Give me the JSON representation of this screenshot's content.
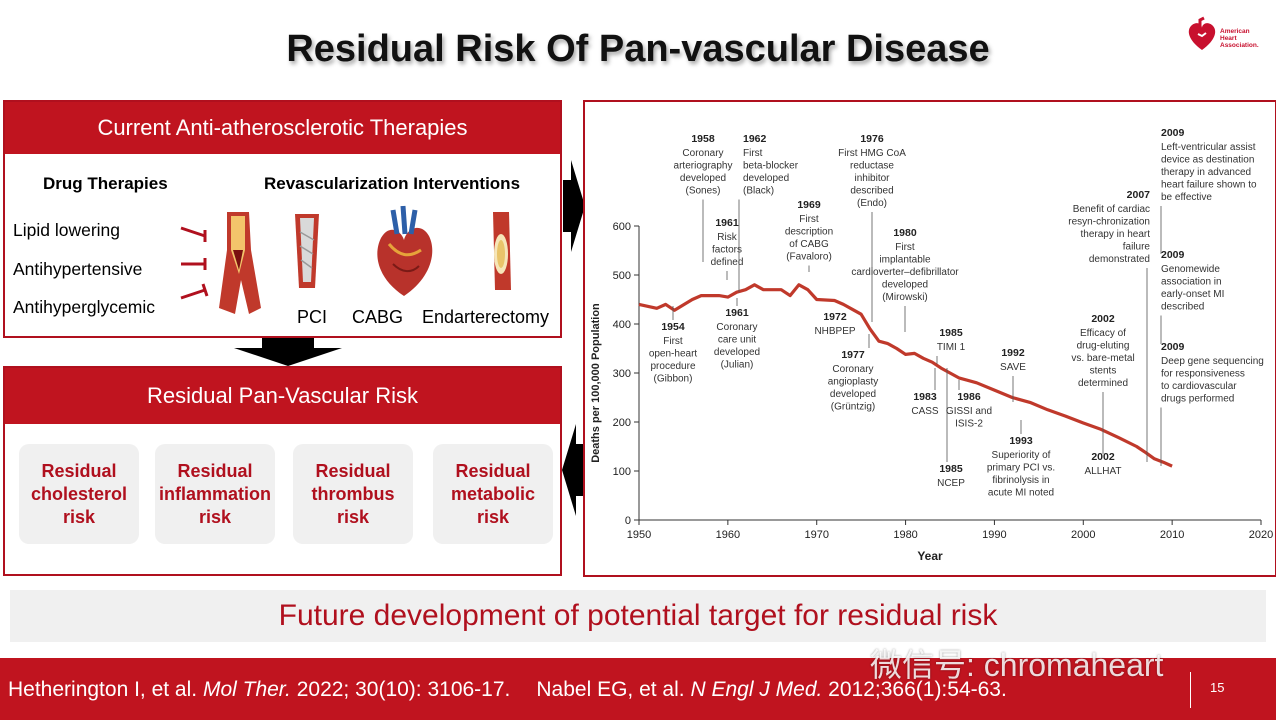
{
  "slide": {
    "title": "Residual Risk Of Pan-vascular Disease",
    "slide_number": "15",
    "aha_logo_text": [
      "American",
      "Heart",
      "Association."
    ]
  },
  "therapies": {
    "header": "Current Anti-atherosclerotic Therapies",
    "drug_header": "Drug Therapies",
    "revasc_header": "Revascularization Interventions",
    "drugs": [
      "Lipid lowering",
      "Antihypertensive",
      "Antihyperglycemic"
    ],
    "procedures": [
      "PCI",
      "CABG",
      "Endarterectomy"
    ]
  },
  "risk": {
    "header": "Residual Pan-Vascular Risk",
    "cards": [
      "Residual cholesterol risk",
      "Residual inflammation risk",
      "Residual thrombus risk",
      "Residual metabolic risk"
    ]
  },
  "future": "Future development of potential target for residual risk",
  "footer": {
    "cite1_authors": "Hetherington I, et al. ",
    "cite1_journal": "Mol Ther.",
    "cite1_rest": " 2022; 30(10): 3106-17.",
    "cite2_authors": "Nabel EG, et al. ",
    "cite2_journal": "N Engl J Med.",
    "cite2_rest": " 2012;366(1):54-63."
  },
  "watermark": "微信号: chromaheart",
  "colors": {
    "brand_red": "#c0141f",
    "line_red": "#c0392b",
    "card_bg": "#f0f0f0"
  },
  "chart_data": {
    "type": "line",
    "xlabel": "Year",
    "ylabel": "Deaths per 100,000 Population",
    "xlim": [
      1950,
      2020
    ],
    "ylim": [
      0,
      600
    ],
    "xticks": [
      1950,
      1960,
      1970,
      1980,
      1990,
      2000,
      2010,
      2020
    ],
    "yticks": [
      0,
      100,
      200,
      300,
      400,
      500,
      600
    ],
    "grid": false,
    "series": [
      {
        "x": [
          1950,
          1952,
          1953,
          1954,
          1956,
          1957,
          1958,
          1959,
          1960,
          1961,
          1962,
          1963,
          1964,
          1966,
          1967,
          1968,
          1969,
          1970,
          1972,
          1973,
          1974,
          1975,
          1976,
          1977,
          1978,
          1979,
          1980,
          1981,
          1982,
          1983,
          1984,
          1985,
          1986,
          1988,
          1990,
          1992,
          1994,
          1996,
          1998,
          2000,
          2002,
          2004,
          2006,
          2007,
          2008,
          2009,
          2010
        ],
        "y": [
          440,
          432,
          440,
          428,
          450,
          458,
          458,
          458,
          455,
          465,
          470,
          480,
          470,
          470,
          458,
          480,
          470,
          450,
          448,
          440,
          430,
          420,
          390,
          365,
          360,
          350,
          338,
          340,
          330,
          322,
          310,
          300,
          290,
          280,
          265,
          250,
          240,
          225,
          212,
          198,
          185,
          168,
          150,
          138,
          125,
          118,
          110
        ]
      }
    ],
    "annotations": [
      {
        "year": "1958",
        "text": "Coronary arteriography developed (Sones)"
      },
      {
        "year": "1961",
        "text": "Risk factors defined"
      },
      {
        "year": "1962",
        "text": "First beta-blocker developed (Black)"
      },
      {
        "year": "1969",
        "text": "First description of CABG (Favaloro)"
      },
      {
        "year": "1976",
        "text": "First HMG CoA reductase inhibitor described (Endo)"
      },
      {
        "year": "1980",
        "text": "First implantable cardioverter–defibrillator developed (Mirowski)"
      },
      {
        "year": "1954",
        "text": "First open-heart procedure (Gibbon)"
      },
      {
        "year": "1961",
        "text": "Coronary care unit developed (Julian)"
      },
      {
        "year": "1972",
        "text": "NHBPEP"
      },
      {
        "year": "1977",
        "text": "Coronary angioplasty developed (Grüntzig)"
      },
      {
        "year": "1983",
        "text": "CASS"
      },
      {
        "year": "1985",
        "text": "TIMI 1"
      },
      {
        "year": "1985",
        "text": "NCEP"
      },
      {
        "year": "1986",
        "text": "GISSI and ISIS-2"
      },
      {
        "year": "1992",
        "text": "SAVE"
      },
      {
        "year": "1993",
        "text": "Superiority of primary PCI vs. fibrinolysis in acute MI noted"
      },
      {
        "year": "2002",
        "text": "Efficacy of drug-eluting vs. bare-metal stents determined"
      },
      {
        "year": "2002",
        "text": "ALLHAT"
      },
      {
        "year": "2007",
        "text": "Benefit of cardiac resyn-chronization therapy in heart failure demonstrated"
      },
      {
        "year": "2009",
        "text": "Left-ventricular assist device as destination therapy in advanced heart failure shown to be effective"
      },
      {
        "year": "2009",
        "text": "Genomewide association in early-onset MI described"
      },
      {
        "year": "2009",
        "text": "Deep gene sequencing for responsiveness to cardiovascular drugs performed"
      }
    ]
  }
}
